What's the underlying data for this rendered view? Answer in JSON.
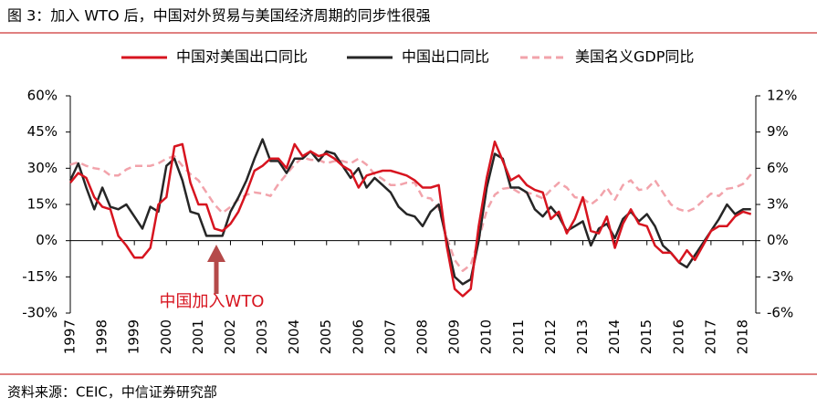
{
  "chart_data": {
    "type": "line",
    "title": "图 3：加入 WTO 后，中国对外贸易与美国经济周期的同步性很强",
    "source": "资料来源：CEIC，中信证券研究部",
    "annotation": "中国加入WTO",
    "x": [
      1997,
      1997.25,
      1997.5,
      1997.75,
      1998,
      1998.25,
      1998.5,
      1998.75,
      1999,
      1999.25,
      1999.5,
      1999.75,
      2000,
      2000.25,
      2000.5,
      2000.75,
      2001,
      2001.25,
      2001.5,
      2001.75,
      2002,
      2002.25,
      2002.5,
      2002.75,
      2003,
      2003.25,
      2003.5,
      2003.75,
      2004,
      2004.25,
      2004.5,
      2004.75,
      2005,
      2005.25,
      2005.5,
      2005.75,
      2006,
      2006.25,
      2006.5,
      2006.75,
      2007,
      2007.25,
      2007.5,
      2007.75,
      2008,
      2008.25,
      2008.5,
      2008.75,
      2009,
      2009.25,
      2009.5,
      2009.75,
      2010,
      2010.25,
      2010.5,
      2010.75,
      2011,
      2011.25,
      2011.5,
      2011.75,
      2012,
      2012.25,
      2012.5,
      2012.75,
      2013,
      2013.25,
      2013.5,
      2013.75,
      2014,
      2014.25,
      2014.5,
      2014.75,
      2015,
      2015.25,
      2015.5,
      2015.75,
      2016,
      2016.25,
      2016.5,
      2016.75,
      2017,
      2017.25,
      2017.5,
      2017.75,
      2018,
      2018.25
    ],
    "series": [
      {
        "name": "中国对美国出口同比",
        "color": "#d7141f",
        "dash": false,
        "values": [
          24,
          28,
          26,
          18,
          14,
          13,
          2,
          -2,
          -7,
          -7,
          -3,
          15,
          18,
          39,
          40,
          24,
          15,
          15,
          5,
          4,
          7,
          12,
          20,
          29,
          31,
          34,
          34,
          30,
          40,
          35,
          37,
          35,
          36,
          34,
          31,
          29,
          22,
          27,
          28,
          29,
          29,
          28,
          27,
          25,
          22,
          22,
          23,
          -2,
          -20,
          -23,
          -20,
          6,
          26,
          41,
          33,
          25,
          27,
          23,
          21,
          20,
          9,
          12,
          3,
          9,
          18,
          4,
          3,
          10,
          -3,
          7,
          13,
          7,
          6,
          -2,
          -5,
          -5,
          -9,
          -4,
          -8,
          -2,
          4,
          6,
          6,
          10,
          12,
          11
        ]
      },
      {
        "name": "中国出口同比",
        "color": "#262626",
        "dash": false,
        "values": [
          25,
          32,
          22,
          13,
          22,
          14,
          13,
          15,
          10,
          5,
          14,
          12,
          31,
          34,
          25,
          12,
          11,
          2,
          2,
          2,
          12,
          18,
          25,
          34,
          42,
          33,
          33,
          28,
          34,
          34,
          37,
          33,
          37,
          36,
          31,
          26,
          30,
          22,
          26,
          23,
          20,
          14,
          11,
          10,
          6,
          12,
          15,
          0,
          -15,
          -18,
          -16,
          0,
          22,
          36,
          34,
          22,
          22,
          20,
          13,
          10,
          14,
          10,
          4,
          6,
          8,
          -2,
          5,
          7,
          1,
          9,
          12,
          8,
          11,
          6,
          -2,
          -5,
          -9,
          -11,
          -6,
          -1,
          4,
          9,
          15,
          11,
          13,
          13
        ]
      },
      {
        "name": "美国名义GDP同比",
        "color": "#f2a3ab",
        "dash": true,
        "axis": "y2",
        "values": [
          6.3,
          6.5,
          6.2,
          6.0,
          5.9,
          5.4,
          5.4,
          5.9,
          6.2,
          6.2,
          6.2,
          6.4,
          6.8,
          7.0,
          6.2,
          5.5,
          5.0,
          4.0,
          3.0,
          2.3,
          2.8,
          3.4,
          3.8,
          4.0,
          3.9,
          3.7,
          4.7,
          5.5,
          6.3,
          6.9,
          6.7,
          6.7,
          6.4,
          6.6,
          6.6,
          6.4,
          6.8,
          6.3,
          5.5,
          5.1,
          4.6,
          4.6,
          4.8,
          4.8,
          3.6,
          3.5,
          2.7,
          0.3,
          -1.6,
          -2.5,
          -2.0,
          0.1,
          2.5,
          3.8,
          4.3,
          4.4,
          4.0,
          4.0,
          3.8,
          3.5,
          4.2,
          4.8,
          4.4,
          3.6,
          3.5,
          3.0,
          3.5,
          4.4,
          3.4,
          4.6,
          5.0,
          4.2,
          4.3,
          5.0,
          4.0,
          3.0,
          2.6,
          2.4,
          2.7,
          3.3,
          3.9,
          3.7,
          4.3,
          4.4,
          4.7,
          5.5
        ]
      }
    ],
    "xlim": [
      1997,
      2018.4
    ],
    "xticks": [
      1997,
      1998,
      1999,
      2000,
      2001,
      2002,
      2003,
      2004,
      2005,
      2006,
      2007,
      2008,
      2009,
      2010,
      2011,
      2012,
      2013,
      2014,
      2015,
      2016,
      2017,
      2018
    ],
    "ylim": [
      -30,
      60
    ],
    "yticks": [
      {
        "value": -30,
        "label": "-30%"
      },
      {
        "value": -15,
        "label": "-15%"
      },
      {
        "value": 0,
        "label": "0%"
      },
      {
        "value": 15,
        "label": "15%"
      },
      {
        "value": 30,
        "label": "30%"
      },
      {
        "value": 45,
        "label": "45%"
      },
      {
        "value": 60,
        "label": "60%"
      }
    ],
    "y2lim": [
      -6,
      12
    ],
    "y2ticks": [
      {
        "value": -6,
        "label": "-6%"
      },
      {
        "value": -3,
        "label": "-3%"
      },
      {
        "value": 0,
        "label": "0%"
      },
      {
        "value": 3,
        "label": "3%"
      },
      {
        "value": 6,
        "label": "6%"
      },
      {
        "value": 9,
        "label": "9%"
      },
      {
        "value": 12,
        "label": "12%"
      }
    ],
    "legend": "top"
  }
}
